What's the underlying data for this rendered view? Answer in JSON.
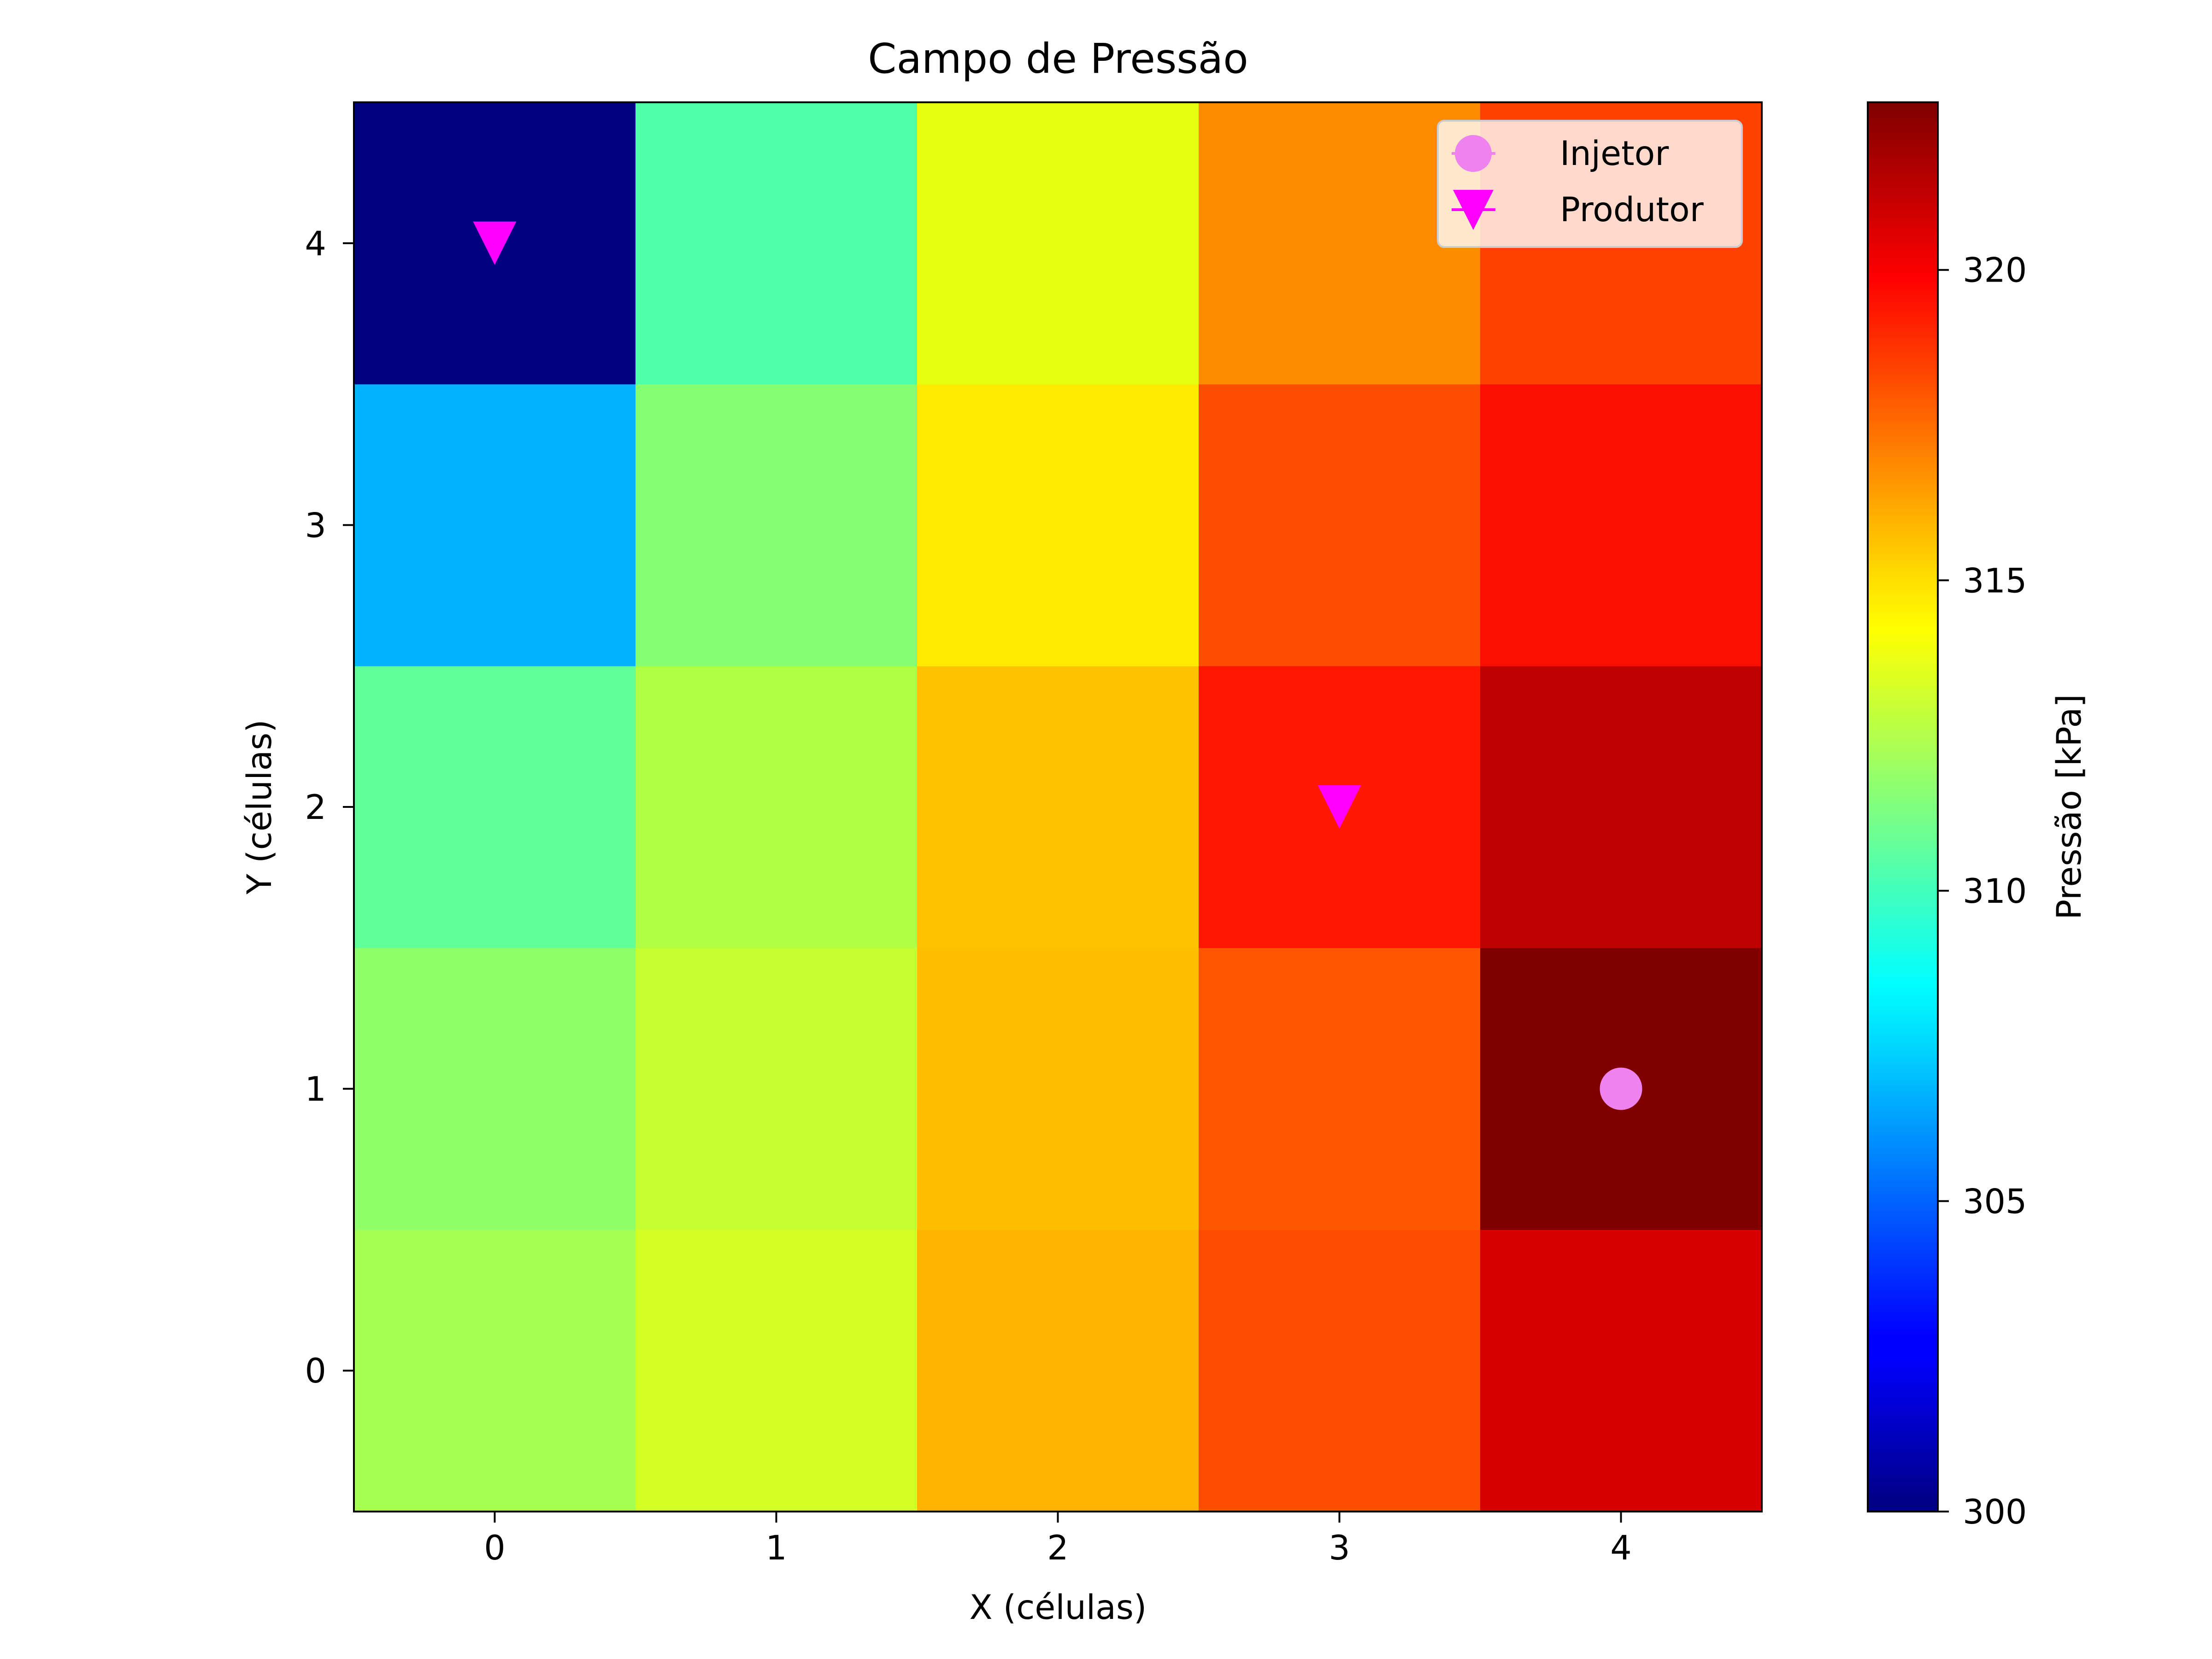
{
  "chart_data": {
    "type": "heatmap",
    "title": "Campo de Pressão",
    "xlabel": "X (células)",
    "ylabel": "Y (células)",
    "x_ticks": [
      "0",
      "1",
      "2",
      "3",
      "4"
    ],
    "y_ticks": [
      "0",
      "1",
      "2",
      "3",
      "4"
    ],
    "x": [
      0,
      1,
      2,
      3,
      4
    ],
    "y": [
      0,
      1,
      2,
      3,
      4
    ],
    "values": [
      [
        312.5,
        313.8,
        316.3,
        318.8,
        321.0
      ],
      [
        311.9,
        313.4,
        316.1,
        318.6,
        322.7
      ],
      [
        310.6,
        312.8,
        316.0,
        320.1,
        321.5
      ],
      [
        306.8,
        311.6,
        315.0,
        318.8,
        320.3
      ],
      [
        300.0,
        310.1,
        314.3,
        317.3,
        319.1
      ]
    ],
    "colorbar": {
      "label": "Pressão [kPa]",
      "range": [
        300,
        322.7
      ],
      "ticks": [
        300,
        305,
        310,
        315,
        320
      ],
      "tick_labels": [
        "300",
        "305",
        "310",
        "315",
        "320"
      ],
      "colormap": "jet"
    },
    "wells": [
      {
        "type": "injector",
        "x": 4,
        "y": 1,
        "marker": "circle",
        "color": "#ee82ee"
      },
      {
        "type": "producer",
        "x": 0,
        "y": 4,
        "marker": "triangle-down",
        "color": "#ff00ff"
      },
      {
        "type": "producer",
        "x": 3,
        "y": 2,
        "marker": "triangle-down",
        "color": "#ff00ff"
      }
    ],
    "legend": {
      "position": "top-right",
      "entries": [
        {
          "label": "Injetor",
          "marker": "circle",
          "color": "#ee82ee"
        },
        {
          "label": "Produtor",
          "marker": "triangle-down",
          "color": "#ff00ff"
        }
      ]
    },
    "grid": false
  }
}
